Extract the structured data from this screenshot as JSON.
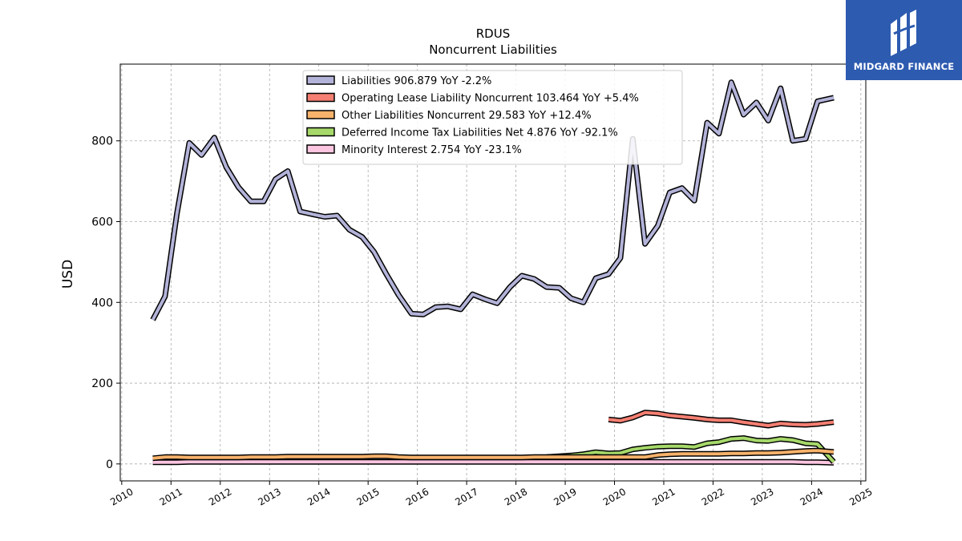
{
  "brand": {
    "name": "MIDGARD FINANCE",
    "color": "#2d5bb0"
  },
  "chart_data": {
    "type": "line",
    "title": "RDUS",
    "subtitle": "Noncurrent  Liabilities",
    "ylabel": "USD",
    "xlabel": "",
    "xlim": [
      2009.97,
      2025.1
    ],
    "ylim": [
      -42,
      990
    ],
    "yticks": [
      0,
      200,
      400,
      600,
      800
    ],
    "xticks": [
      2010,
      2011,
      2012,
      2013,
      2014,
      2015,
      2016,
      2017,
      2018,
      2019,
      2020,
      2021,
      2022,
      2023,
      2024,
      2025
    ],
    "grid": true,
    "legend_position": "top-center",
    "series": [
      {
        "name": "Liabilities",
        "legend": "Liabilities  906.879 YoY -2.2%",
        "color": "#b3b3d9",
        "x": [
          2010.63,
          2010.88,
          2011.12,
          2011.37,
          2011.62,
          2011.88,
          2012.12,
          2012.37,
          2012.62,
          2012.88,
          2013.12,
          2013.37,
          2013.62,
          2013.88,
          2014.12,
          2014.37,
          2014.62,
          2014.88,
          2015.12,
          2015.37,
          2015.62,
          2015.88,
          2016.12,
          2016.37,
          2016.62,
          2016.88,
          2017.12,
          2017.37,
          2017.62,
          2017.88,
          2018.12,
          2018.37,
          2018.62,
          2018.88,
          2019.12,
          2019.37,
          2019.62,
          2019.88,
          2020.12,
          2020.37,
          2020.62,
          2020.88,
          2021.12,
          2021.37,
          2021.62,
          2021.88,
          2022.12,
          2022.37,
          2022.62,
          2022.88,
          2023.12,
          2023.37,
          2023.62,
          2023.88,
          2024.12,
          2024.45
        ],
        "values": [
          357,
          415,
          620,
          795,
          765,
          808,
          735,
          685,
          650,
          650,
          705,
          725,
          625,
          618,
          612,
          615,
          580,
          562,
          525,
          470,
          418,
          372,
          370,
          388,
          390,
          383,
          420,
          408,
          398,
          438,
          466,
          458,
          438,
          436,
          410,
          400,
          460,
          470,
          510,
          805,
          545,
          590,
          672,
          683,
          652,
          845,
          818,
          945,
          865,
          895,
          850,
          930,
          800,
          805,
          898,
          906.879
        ]
      },
      {
        "name": "Operating Lease Liability Noncurrent",
        "legend": "Operating Lease Liability Noncurrent  103.464 YoY +5.4%",
        "color": "#f47f72",
        "x": [
          2019.88,
          2020.12,
          2020.37,
          2020.62,
          2020.88,
          2021.12,
          2021.37,
          2021.62,
          2021.88,
          2022.12,
          2022.37,
          2022.62,
          2022.88,
          2023.12,
          2023.37,
          2023.62,
          2023.88,
          2024.12,
          2024.45
        ],
        "values": [
          110,
          107,
          115,
          127,
          125,
          120,
          117,
          114,
          110,
          108,
          108,
          103,
          99,
          95,
          100,
          98,
          97,
          99,
          103.464
        ]
      },
      {
        "name": "Other Liabilities Noncurrent",
        "legend": "Other Liabilities Noncurrent  29.583 YoY +12.4%",
        "color": "#f7b26b",
        "x": [
          2010.63,
          2010.88,
          2011.12,
          2011.37,
          2011.62,
          2011.88,
          2012.12,
          2012.37,
          2012.62,
          2012.88,
          2013.12,
          2013.37,
          2013.62,
          2013.88,
          2014.12,
          2014.37,
          2014.62,
          2014.88,
          2015.12,
          2015.37,
          2015.62,
          2015.88,
          2016.12,
          2016.37,
          2016.62,
          2016.88,
          2017.12,
          2017.37,
          2017.62,
          2017.88,
          2018.12,
          2018.37,
          2018.62,
          2018.88,
          2019.12,
          2019.37,
          2019.62,
          2019.88,
          2020.12,
          2020.37,
          2020.62,
          2020.88,
          2021.12,
          2021.37,
          2021.62,
          2021.88,
          2022.12,
          2022.37,
          2022.62,
          2022.88,
          2023.12,
          2023.37,
          2023.62,
          2023.88,
          2024.12,
          2024.45
        ],
        "values": [
          14,
          17,
          17,
          16,
          16,
          16,
          16,
          16,
          17,
          17,
          17,
          18,
          18,
          18,
          18,
          18,
          18,
          18,
          19,
          19,
          17,
          16,
          16,
          16,
          16,
          16,
          16,
          16,
          16,
          16,
          16,
          17,
          17,
          17,
          17,
          17,
          17,
          17,
          17,
          17,
          17,
          22,
          24,
          25,
          25,
          25,
          25,
          26,
          26,
          27,
          27,
          28,
          30,
          32,
          33,
          29.583
        ]
      },
      {
        "name": "Deferred Income Tax Liabilities Net",
        "legend": "Deferred Income Tax Liabilities Net  4.876 YoY -92.1%",
        "color": "#a6d96a",
        "x": [
          2018.62,
          2018.88,
          2019.12,
          2019.37,
          2019.62,
          2019.88,
          2020.12,
          2020.37,
          2020.62,
          2020.88,
          2021.12,
          2021.37,
          2021.62,
          2021.88,
          2022.12,
          2022.37,
          2022.62,
          2022.88,
          2023.12,
          2023.37,
          2023.62,
          2023.88,
          2024.12,
          2024.45
        ],
        "values": [
          17,
          19,
          21,
          24,
          29,
          26,
          27,
          36,
          40,
          43,
          44,
          44,
          42,
          51,
          54,
          62,
          64,
          58,
          57,
          62,
          59,
          51,
          49,
          4.876
        ]
      },
      {
        "name": "Minority Interest",
        "legend": "Minority Interest  2.754 YoY -23.1%",
        "color": "#fcc5e0",
        "x": [
          2010.63,
          2010.88,
          2011.12,
          2011.37,
          2011.62,
          2011.88,
          2012.12,
          2012.37,
          2012.62,
          2012.88,
          2013.12,
          2013.37,
          2013.62,
          2013.88,
          2014.12,
          2014.37,
          2014.62,
          2014.88,
          2015.12,
          2015.37,
          2015.62,
          2015.88,
          2016.12,
          2016.37,
          2016.62,
          2016.88,
          2017.12,
          2017.37,
          2017.62,
          2017.88,
          2018.12,
          2018.37,
          2018.62,
          2018.88,
          2019.12,
          2019.37,
          2019.62,
          2019.88,
          2020.12,
          2020.37,
          2020.62,
          2020.88,
          2021.12,
          2021.37,
          2021.62,
          2021.88,
          2022.12,
          2022.37,
          2022.62,
          2022.88,
          2023.12,
          2023.37,
          2023.62,
          2023.88,
          2024.12,
          2024.45
        ],
        "values": [
          4,
          4,
          4,
          5,
          5,
          5,
          5,
          5,
          5,
          5,
          5,
          5,
          5,
          5,
          5,
          5,
          5,
          5,
          5,
          5,
          5,
          5,
          5,
          5,
          5,
          5,
          5,
          5,
          5,
          5,
          5,
          5,
          5,
          5,
          5,
          5,
          5,
          5,
          5,
          5,
          5,
          5,
          5,
          5,
          5,
          5,
          5,
          5,
          5,
          5,
          5,
          5,
          5,
          4,
          4,
          2.754
        ]
      }
    ]
  }
}
